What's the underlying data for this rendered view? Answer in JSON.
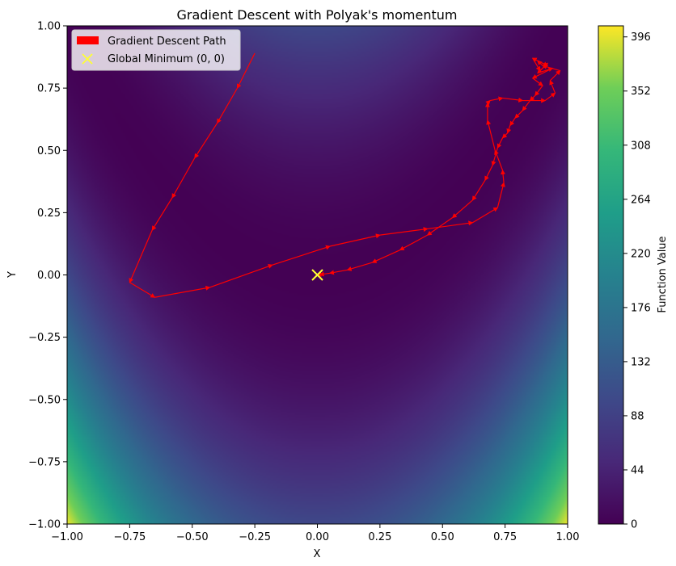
{
  "chart_data": {
    "type": "heatmap",
    "title": "Gradient Descent with Polyak's momentum",
    "xlabel": "X",
    "ylabel": "Y",
    "xlim": [
      -1.0,
      1.0
    ],
    "ylim": [
      -1.0,
      1.0
    ],
    "x_ticks": [
      "−1.00",
      "−0.75",
      "−0.50",
      "−0.25",
      "0.00",
      "0.25",
      "0.50",
      "0.75",
      "1.00"
    ],
    "y_ticks": [
      "−1.00",
      "−0.75",
      "−0.50",
      "−0.25",
      "0.00",
      "0.25",
      "0.50",
      "0.75",
      "1.00"
    ],
    "colorbar": {
      "label": "Function Value",
      "range": [
        0,
        405
      ],
      "ticks": [
        "0",
        "44",
        "88",
        "132",
        "176",
        "220",
        "264",
        "308",
        "352",
        "396"
      ],
      "colormap": "viridis"
    },
    "legend": {
      "placement": "top-left",
      "entries": [
        "Gradient Descent Path",
        "Global Minimum (0, 0)"
      ]
    },
    "path_color": "#ff0000",
    "minimum_marker_color": "#ffff33",
    "series": [
      {
        "name": "Gradient Descent Path",
        "x": [
          -0.25,
          -0.32,
          -0.4,
          -0.49,
          -0.58,
          -0.66,
          -0.75,
          -0.65,
          -0.43,
          -0.18,
          0.05,
          0.25,
          0.44,
          0.62,
          0.72,
          0.745,
          0.74,
          0.71,
          0.68,
          0.68,
          0.69,
          0.74,
          0.82,
          0.91,
          0.95,
          0.93,
          0.97,
          0.9,
          0.88,
          0.92,
          0.86,
          0.89,
          0.92,
          0.88,
          0.94,
          0.86,
          0.9,
          0.87,
          0.85,
          0.82,
          0.79,
          0.77,
          0.76,
          0.74,
          0.72,
          0.7,
          0.67,
          0.62,
          0.54,
          0.44,
          0.33,
          0.22,
          0.12,
          0.05,
          0.01,
          0.0
        ],
        "y": [
          0.89,
          0.75,
          0.61,
          0.47,
          0.31,
          0.18,
          -0.03,
          -0.09,
          -0.05,
          0.04,
          0.115,
          0.16,
          0.185,
          0.21,
          0.27,
          0.37,
          0.42,
          0.5,
          0.62,
          0.69,
          0.7,
          0.71,
          0.7,
          0.7,
          0.73,
          0.78,
          0.82,
          0.84,
          0.86,
          0.84,
          0.87,
          0.82,
          0.85,
          0.81,
          0.83,
          0.79,
          0.76,
          0.72,
          0.7,
          0.66,
          0.63,
          0.6,
          0.57,
          0.55,
          0.51,
          0.44,
          0.38,
          0.3,
          0.23,
          0.16,
          0.1,
          0.05,
          0.02,
          0.007,
          0.001,
          0.0
        ]
      },
      {
        "name": "Global Minimum (0, 0)",
        "x": [
          0.0
        ],
        "y": [
          0.0
        ]
      }
    ]
  }
}
